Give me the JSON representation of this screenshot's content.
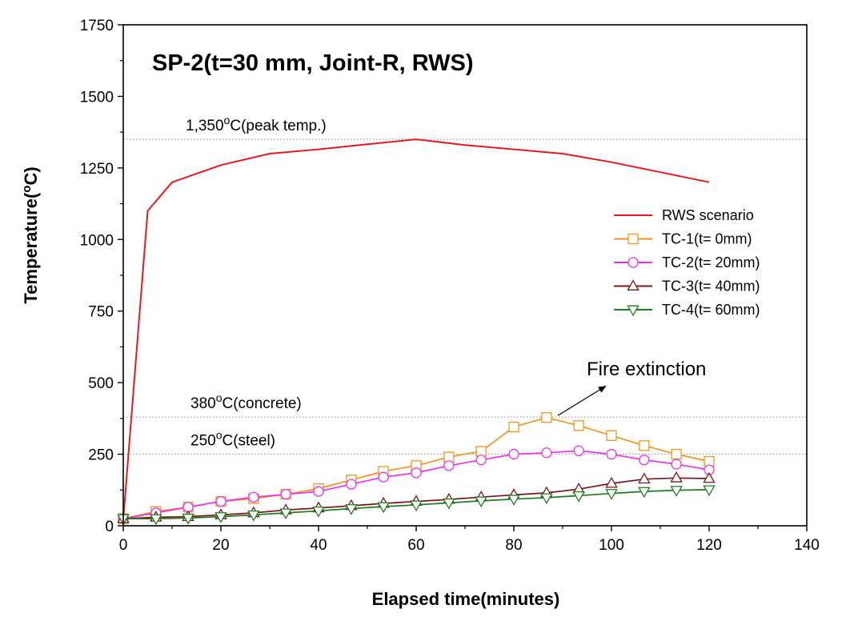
{
  "chart_data": {
    "type": "line",
    "title": "SP-2(t=30 mm, Joint-R, RWS)",
    "xlabel": "Elapsed time(minutes)",
    "ylabel": "Temperature(°C)",
    "ylabel_parts": {
      "pre": "Temperature(",
      "sup": "o",
      "post": "C)"
    },
    "xlim": [
      0,
      140
    ],
    "ylim": [
      0,
      1750
    ],
    "xticks": [
      0,
      20,
      40,
      60,
      80,
      100,
      120,
      140
    ],
    "yticks": [
      0,
      250,
      500,
      750,
      1000,
      1250,
      1500,
      1750
    ],
    "grid": false,
    "legend_position": "right",
    "reference_lines": [
      {
        "y": 1350,
        "label_pre": "1,350",
        "label_sup": "o",
        "label_post": "C(peak temp.)"
      },
      {
        "y": 380,
        "label_pre": "380",
        "label_sup": "o",
        "label_post": "C(concrete)"
      },
      {
        "y": 250,
        "label_pre": "250",
        "label_sup": "o",
        "label_post": "C(steel)"
      }
    ],
    "annotation": {
      "text": "Fire extinction",
      "x": 89,
      "y": 385
    },
    "series": [
      {
        "name": "RWS scenario",
        "color": "#e8191c",
        "marker": "none",
        "x": [
          0,
          5,
          10,
          20,
          30,
          40,
          50,
          60,
          70,
          80,
          90,
          100,
          110,
          120
        ],
        "y": [
          20,
          1100,
          1200,
          1260,
          1300,
          1315,
          1333,
          1350,
          1330,
          1315,
          1300,
          1270,
          1235,
          1200
        ]
      },
      {
        "name": "TC-1(t=   0mm)",
        "color": "#f39419",
        "marker": "square",
        "x": [
          0,
          6.7,
          13.3,
          20,
          26.7,
          33.3,
          40,
          46.7,
          53.3,
          60,
          66.7,
          73.3,
          80,
          86.7,
          93.3,
          100,
          106.7,
          113.3,
          120
        ],
        "y": [
          25,
          50,
          65,
          85,
          95,
          110,
          130,
          160,
          190,
          210,
          240,
          260,
          345,
          378,
          350,
          315,
          280,
          250,
          225
        ]
      },
      {
        "name": "TC-2(t= 20mm)",
        "color": "#ee2ef0",
        "marker": "circle",
        "x": [
          0,
          6.7,
          13.3,
          20,
          26.7,
          33.3,
          40,
          46.7,
          53.3,
          60,
          66.7,
          73.3,
          80,
          86.7,
          93.3,
          100,
          106.7,
          113.3,
          120
        ],
        "y": [
          25,
          45,
          65,
          85,
          100,
          110,
          120,
          145,
          170,
          185,
          210,
          230,
          250,
          255,
          262,
          250,
          230,
          215,
          195
        ]
      },
      {
        "name": "TC-3(t= 40mm)",
        "color": "#7e1417",
        "marker": "triangle-up",
        "x": [
          0,
          6.7,
          13.3,
          20,
          26.7,
          33.3,
          40,
          46.7,
          53.3,
          60,
          66.7,
          73.3,
          80,
          86.7,
          93.3,
          100,
          106.7,
          113.3,
          120
        ],
        "y": [
          25,
          30,
          32,
          38,
          45,
          55,
          62,
          70,
          78,
          85,
          92,
          100,
          108,
          115,
          128,
          148,
          163,
          167,
          165
        ]
      },
      {
        "name": "TC-4(t= 60mm)",
        "color": "#1c7f1f",
        "marker": "triangle-down",
        "x": [
          0,
          6.7,
          13.3,
          20,
          26.7,
          33.3,
          40,
          46.7,
          53.3,
          60,
          66.7,
          73.3,
          80,
          86.7,
          93.3,
          100,
          106.7,
          113.3,
          120
        ],
        "y": [
          25,
          25,
          27,
          32,
          38,
          45,
          52,
          60,
          67,
          73,
          80,
          87,
          93,
          98,
          105,
          113,
          120,
          124,
          126
        ]
      }
    ]
  }
}
